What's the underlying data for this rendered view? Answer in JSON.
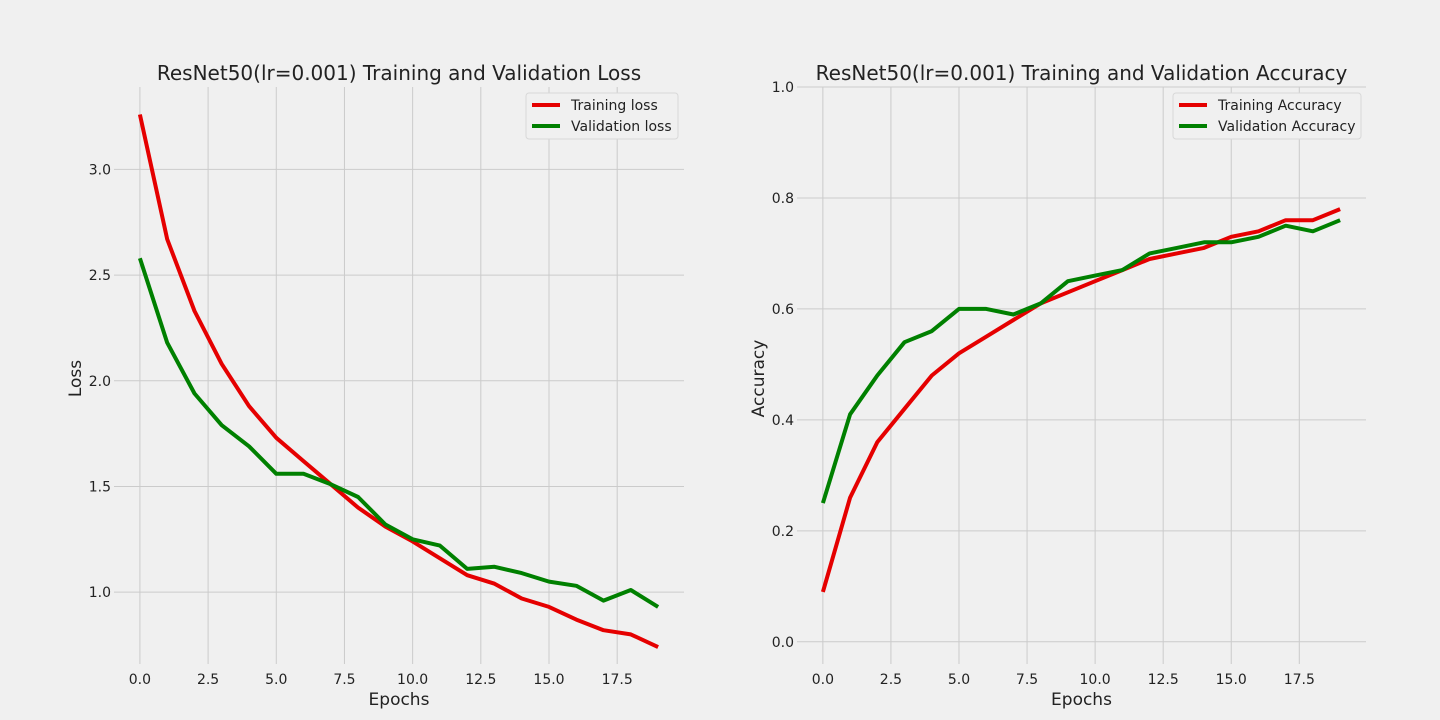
{
  "chart_data": [
    {
      "type": "line",
      "title": "ResNet50(lr=0.001) Training and Validation Loss",
      "xlabel": "Epochs",
      "ylabel": "Loss",
      "x": [
        0,
        1,
        2,
        3,
        4,
        5,
        6,
        7,
        8,
        9,
        10,
        11,
        12,
        13,
        14,
        15,
        16,
        17,
        18,
        19
      ],
      "xticks": [
        0.0,
        2.5,
        5.0,
        7.5,
        10.0,
        12.5,
        15.0,
        17.5
      ],
      "yticks": [
        1.0,
        1.5,
        2.0,
        2.5,
        3.0
      ],
      "xlim": [
        -0.95,
        19.95
      ],
      "ylim": [
        0.66,
        3.39
      ],
      "grid": true,
      "legend_position": "top-right",
      "series": [
        {
          "name": "Training loss",
          "color": "#e50000",
          "values": [
            3.26,
            2.67,
            2.33,
            2.08,
            1.88,
            1.73,
            1.62,
            1.51,
            1.4,
            1.31,
            1.24,
            1.16,
            1.08,
            1.04,
            0.97,
            0.93,
            0.87,
            0.82,
            0.8,
            0.74
          ]
        },
        {
          "name": "Validation loss",
          "color": "#008000",
          "values": [
            2.58,
            2.18,
            1.94,
            1.79,
            1.69,
            1.56,
            1.56,
            1.51,
            1.45,
            1.32,
            1.25,
            1.22,
            1.11,
            1.12,
            1.09,
            1.05,
            1.03,
            0.96,
            1.01,
            0.93
          ]
        }
      ]
    },
    {
      "type": "line",
      "title": "ResNet50(lr=0.001) Training and Validation Accuracy",
      "xlabel": "Epochs",
      "ylabel": "Accuracy",
      "x": [
        0,
        1,
        2,
        3,
        4,
        5,
        6,
        7,
        8,
        9,
        10,
        11,
        12,
        13,
        14,
        15,
        16,
        17,
        18,
        19
      ],
      "xticks": [
        0.0,
        2.5,
        5.0,
        7.5,
        10.0,
        12.5,
        15.0,
        17.5
      ],
      "yticks": [
        0.0,
        0.2,
        0.4,
        0.6,
        0.8,
        1.0
      ],
      "xlim": [
        -0.95,
        19.95
      ],
      "ylim": [
        -0.04,
        1.0
      ],
      "grid": true,
      "legend_position": "top-right",
      "series": [
        {
          "name": "Training Accuracy",
          "color": "#e50000",
          "values": [
            0.09,
            0.26,
            0.36,
            0.42,
            0.48,
            0.52,
            0.55,
            0.58,
            0.61,
            0.63,
            0.65,
            0.67,
            0.69,
            0.7,
            0.71,
            0.73,
            0.74,
            0.76,
            0.76,
            0.78
          ]
        },
        {
          "name": "Validation Accuracy",
          "color": "#008000",
          "values": [
            0.25,
            0.41,
            0.48,
            0.54,
            0.56,
            0.6,
            0.6,
            0.59,
            0.61,
            0.65,
            0.66,
            0.67,
            0.7,
            0.71,
            0.72,
            0.72,
            0.73,
            0.75,
            0.74,
            0.76
          ]
        }
      ]
    }
  ]
}
